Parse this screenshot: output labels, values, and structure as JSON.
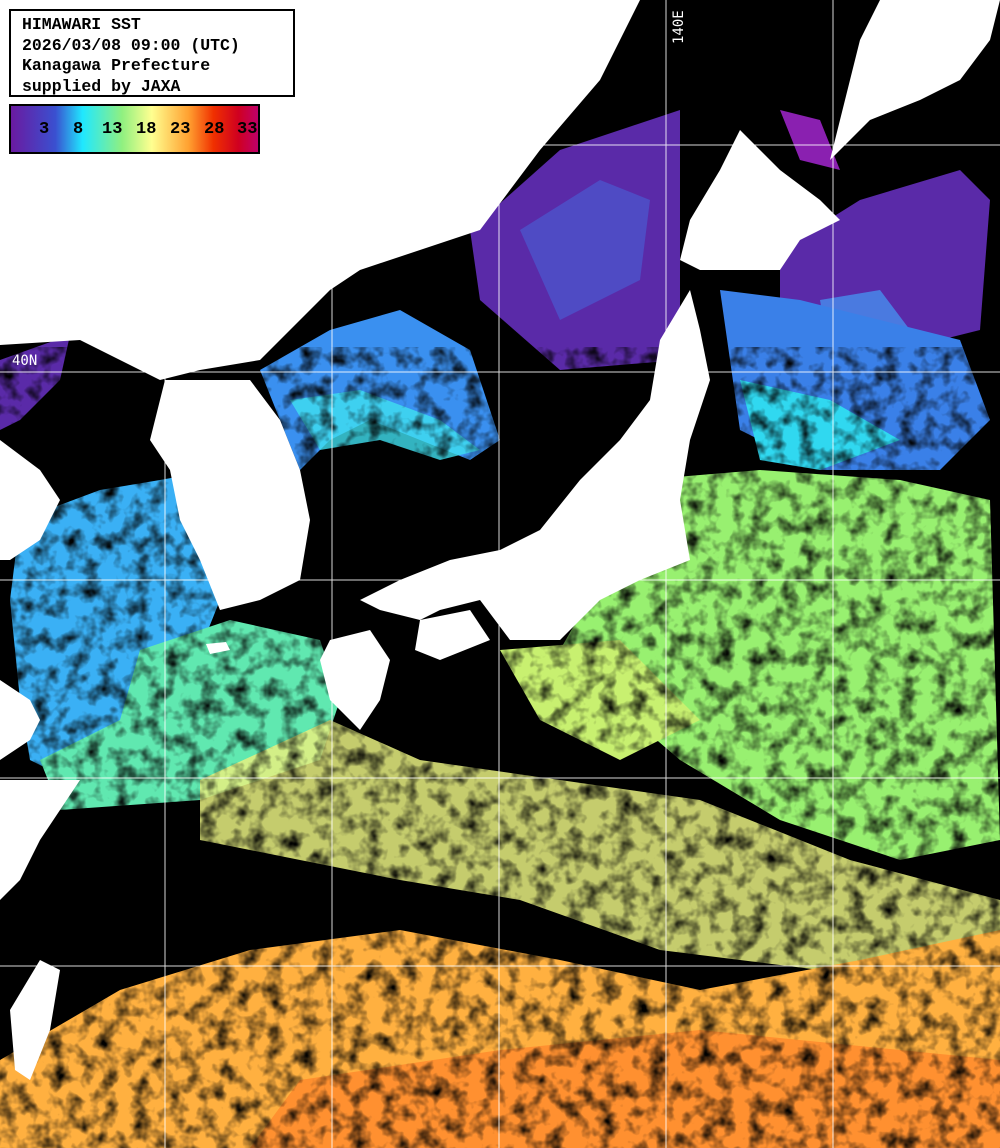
{
  "info": {
    "title": "HIMAWARI SST",
    "datetime": "2026/03/08 09:00 (UTC)",
    "region": "Kanagawa Prefecture",
    "credit": "supplied by JAXA"
  },
  "legend": {
    "unit_hint": "SST",
    "ticks": [
      "3",
      "8",
      "13",
      "18",
      "23",
      "28",
      "33"
    ],
    "colors": [
      "#6a1aa0",
      "#3a50d0",
      "#20e8ff",
      "#90f080",
      "#ffff90",
      "#ffa030",
      "#f03000",
      "#d00020",
      "#c0006a"
    ]
  },
  "grid": {
    "lat_labels": [
      "40N"
    ],
    "lon_labels": [
      "140E"
    ]
  },
  "colors": {
    "land": "#ffffff",
    "cloud_nodata": "#000000",
    "grid": "#ffffff"
  }
}
